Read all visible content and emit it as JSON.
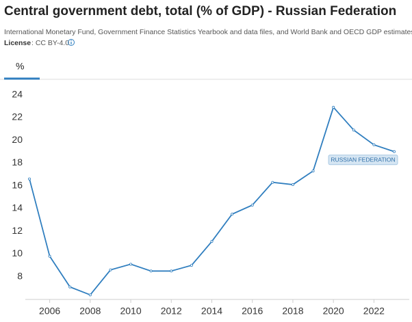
{
  "chart_data": {
    "type": "line",
    "title": "Central government debt, total (% of GDP) - Russian Federation",
    "subtitle": "International Monetary Fund, Government Finance Statistics Yearbook and data files, and World Bank and OECD GDP estimates.",
    "license_label": "License",
    "license_value": ": CC BY-4.0",
    "tab": "%",
    "x": [
      2005,
      2006,
      2007,
      2008,
      2009,
      2010,
      2011,
      2012,
      2013,
      2014,
      2015,
      2016,
      2017,
      2018,
      2019,
      2020,
      2021,
      2022,
      2023
    ],
    "series": [
      {
        "name": "RUSSIAN FEDERATION",
        "color": "#2f7ebf",
        "values": [
          16.6,
          9.8,
          7.1,
          6.4,
          8.6,
          9.1,
          8.5,
          8.5,
          9.0,
          11.1,
          13.5,
          14.3,
          16.3,
          16.1,
          17.3,
          22.9,
          20.9,
          19.6,
          19.0
        ]
      }
    ],
    "xlim": [
      2005,
      2023
    ],
    "xticks": [
      2006,
      2008,
      2010,
      2012,
      2014,
      2016,
      2018,
      2020,
      2022
    ],
    "ylim": [
      6,
      25
    ],
    "yticks": [
      8,
      10,
      12,
      14,
      16,
      18,
      20,
      22,
      24
    ],
    "grid": false
  }
}
